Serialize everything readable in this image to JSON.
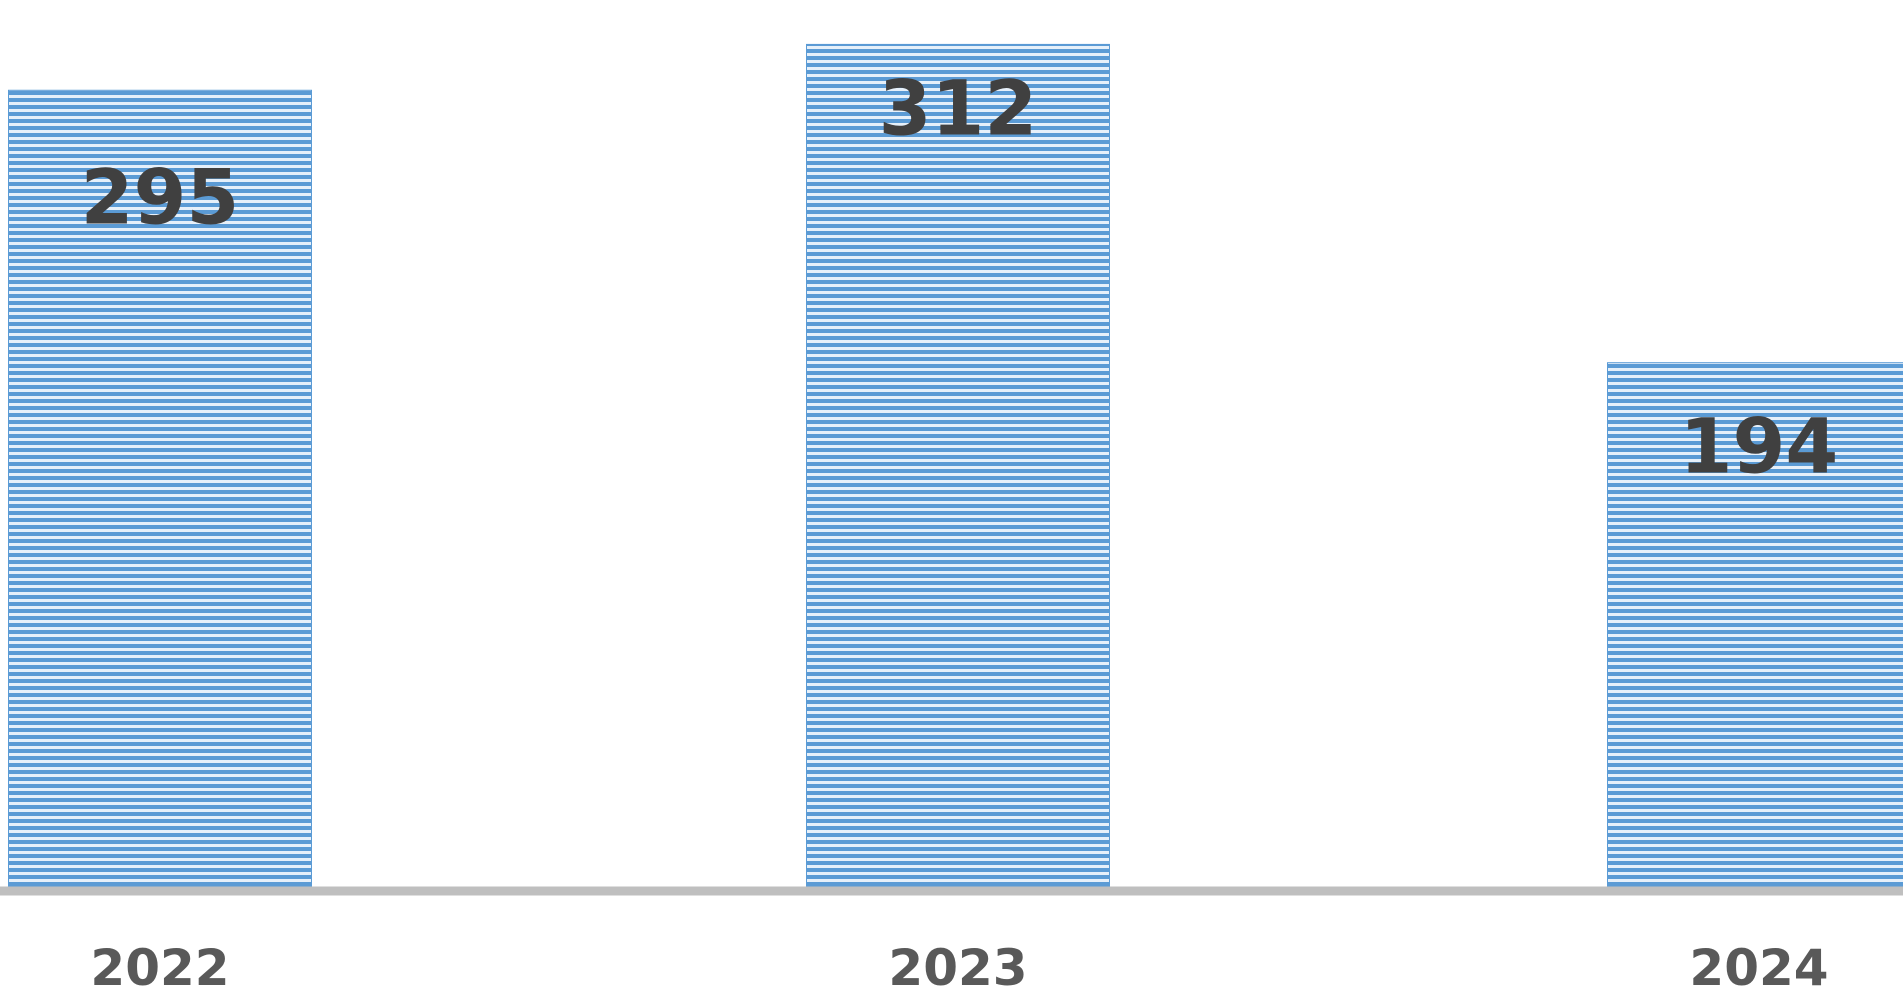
{
  "chart_data": {
    "type": "bar",
    "categories": [
      "2022",
      "2023",
      "2024"
    ],
    "values": [
      295,
      312,
      194
    ],
    "data_labels": [
      "295",
      "312",
      "194"
    ],
    "title": "",
    "xlabel": "",
    "ylabel": "",
    "ylim": [
      0,
      315
    ],
    "grid": false,
    "legend": "none",
    "bar_fill": "horizontal-stripes",
    "colors": {
      "bar_dark": "#5b9bd5",
      "bar_light": "#e6f0fa",
      "axis": "#bfbfbf",
      "label_text": "#404040",
      "tick_text": "#595959"
    }
  }
}
